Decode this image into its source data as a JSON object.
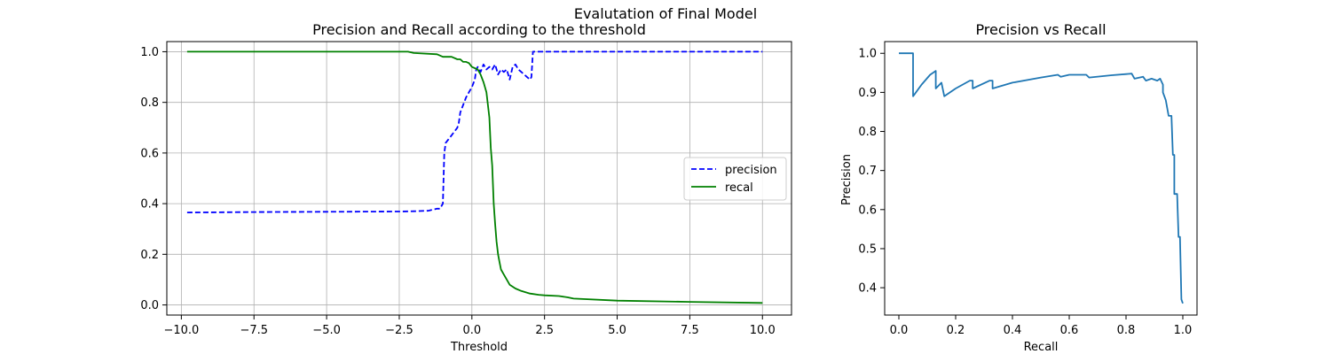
{
  "figure": {
    "suptitle": "Evalutation of Final Model"
  },
  "colors": {
    "precision": "#0000ff",
    "recall": "#008000",
    "pr_curve": "#1f77b4",
    "grid": "#b0b0b0"
  },
  "chart_data": [
    {
      "type": "line",
      "title": "Precision and Recall according to the threshold",
      "xlabel": "Threshold",
      "ylabel": "",
      "xlim": [
        -10.5,
        11.0
      ],
      "ylim": [
        -0.04,
        1.04
      ],
      "grid": true,
      "legend": "center-right",
      "xticks": [
        -10.0,
        -7.5,
        -5.0,
        -2.5,
        0.0,
        2.5,
        5.0,
        7.5,
        10.0
      ],
      "xtick_labels": [
        "−10.0",
        "−7.5",
        "−5.0",
        "−2.5",
        "0.0",
        "2.5",
        "5.0",
        "7.5",
        "10.0"
      ],
      "yticks": [
        0.0,
        0.2,
        0.4,
        0.6,
        0.8,
        1.0
      ],
      "ytick_labels": [
        "0.0",
        "0.2",
        "0.4",
        "0.6",
        "0.8",
        "1.0"
      ],
      "series": [
        {
          "name": "precision",
          "style": "dashed",
          "x": [
            -9.8,
            -7.5,
            -5.0,
            -2.5,
            -2.0,
            -1.5,
            -1.2,
            -1.1,
            -1.0,
            -0.95,
            -0.9,
            -0.7,
            -0.5,
            -0.45,
            -0.4,
            -0.3,
            -0.2,
            -0.1,
            0.0,
            0.1,
            0.15,
            0.2,
            0.3,
            0.4,
            0.5,
            0.6,
            0.7,
            0.8,
            0.9,
            1.0,
            1.1,
            1.2,
            1.3,
            1.4,
            1.5,
            1.6,
            1.7,
            1.8,
            1.9,
            2.0,
            2.05,
            2.1,
            3.0,
            5.0,
            7.5,
            10.0
          ],
          "y": [
            0.365,
            0.367,
            0.368,
            0.369,
            0.37,
            0.372,
            0.38,
            0.38,
            0.4,
            0.6,
            0.64,
            0.67,
            0.7,
            0.72,
            0.76,
            0.79,
            0.82,
            0.84,
            0.86,
            0.89,
            0.93,
            0.94,
            0.92,
            0.95,
            0.93,
            0.94,
            0.93,
            0.95,
            0.91,
            0.93,
            0.92,
            0.93,
            0.89,
            0.94,
            0.95,
            0.93,
            0.92,
            0.91,
            0.9,
            0.89,
            0.9,
            1.0,
            1.0,
            1.0,
            1.0,
            1.0
          ]
        },
        {
          "name": "recal",
          "style": "solid",
          "x": [
            -9.8,
            -5.0,
            -2.2,
            -2.0,
            -1.2,
            -1.0,
            -0.7,
            -0.5,
            -0.4,
            -0.3,
            -0.2,
            -0.1,
            0.0,
            0.2,
            0.3,
            0.4,
            0.5,
            0.6,
            0.65,
            0.7,
            0.75,
            0.8,
            0.85,
            0.9,
            0.95,
            1.0,
            1.1,
            1.2,
            1.3,
            1.5,
            1.7,
            2.0,
            2.3,
            2.5,
            3.0,
            3.3,
            3.5,
            5.0,
            7.5,
            10.0
          ],
          "y": [
            1.0,
            1.0,
            1.0,
            0.995,
            0.99,
            0.98,
            0.98,
            0.97,
            0.97,
            0.96,
            0.96,
            0.955,
            0.94,
            0.93,
            0.91,
            0.88,
            0.84,
            0.74,
            0.62,
            0.55,
            0.4,
            0.32,
            0.25,
            0.2,
            0.17,
            0.14,
            0.12,
            0.1,
            0.08,
            0.065,
            0.055,
            0.045,
            0.04,
            0.038,
            0.035,
            0.03,
            0.025,
            0.017,
            0.012,
            0.008
          ]
        }
      ]
    },
    {
      "type": "line",
      "title": "Precision vs Recall",
      "xlabel": "Recall",
      "ylabel": "Precision",
      "xlim": [
        -0.05,
        1.05
      ],
      "ylim": [
        0.33,
        1.03
      ],
      "grid": false,
      "xticks": [
        0.0,
        0.2,
        0.4,
        0.6,
        0.8,
        1.0
      ],
      "xtick_labels": [
        "0.0",
        "0.2",
        "0.4",
        "0.6",
        "0.8",
        "1.0"
      ],
      "yticks": [
        0.4,
        0.5,
        0.6,
        0.7,
        0.8,
        0.9,
        1.0
      ],
      "ytick_labels": [
        "0.4",
        "0.5",
        "0.6",
        "0.7",
        "0.8",
        "0.9",
        "1.0"
      ],
      "series": [
        {
          "style": "solid",
          "x": [
            0.0,
            0.05,
            0.05,
            0.08,
            0.11,
            0.13,
            0.13,
            0.15,
            0.15,
            0.16,
            0.16,
            0.2,
            0.25,
            0.26,
            0.26,
            0.32,
            0.33,
            0.33,
            0.4,
            0.5,
            0.56,
            0.57,
            0.6,
            0.66,
            0.67,
            0.75,
            0.82,
            0.83,
            0.86,
            0.87,
            0.89,
            0.91,
            0.92,
            0.93,
            0.93,
            0.94,
            0.945,
            0.95,
            0.96,
            0.965,
            0.97,
            0.97,
            0.98,
            0.985,
            0.99,
            0.995,
            1.0
          ],
          "y": [
            1.0,
            1.0,
            0.89,
            0.92,
            0.945,
            0.955,
            0.91,
            0.925,
            0.925,
            0.89,
            0.89,
            0.91,
            0.93,
            0.93,
            0.91,
            0.93,
            0.93,
            0.91,
            0.925,
            0.938,
            0.945,
            0.94,
            0.945,
            0.945,
            0.938,
            0.944,
            0.948,
            0.935,
            0.94,
            0.93,
            0.935,
            0.93,
            0.935,
            0.92,
            0.9,
            0.88,
            0.86,
            0.84,
            0.84,
            0.74,
            0.74,
            0.64,
            0.64,
            0.53,
            0.53,
            0.37,
            0.36
          ]
        }
      ]
    }
  ]
}
